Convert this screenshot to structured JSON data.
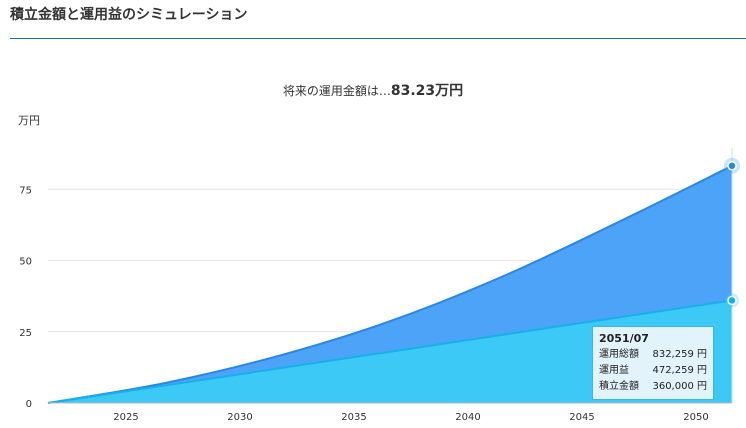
{
  "page": {
    "title": "積立金額と運用益のシミュレーション"
  },
  "headline": {
    "prefix": "将来の運用金額は…",
    "value": "83.23万円"
  },
  "chart_data": {
    "type": "area",
    "ylabel": "万円",
    "x_range": [
      2021.58,
      2051.58
    ],
    "ylim": [
      0,
      100
    ],
    "y_ticks": [
      0,
      25,
      50,
      75
    ],
    "x_ticks": [
      2025,
      2030,
      2035,
      2040,
      2045,
      2050
    ],
    "grid": true,
    "x": [
      2021.58,
      2026.58,
      2031.58,
      2036.58,
      2041.58,
      2046.58,
      2051.58
    ],
    "series": [
      {
        "name": "運用総額",
        "values": [
          0,
          6.8,
          16.3,
          28.7,
          44.6,
          63.4,
          83.23
        ],
        "color": "#4da3f8"
      },
      {
        "name": "積立金額",
        "values": [
          0,
          6,
          12,
          18,
          24,
          30,
          36
        ],
        "color": "#3cc9f5"
      }
    ],
    "colors": {
      "total": "#4da3f8",
      "total_line": "#2b86e3",
      "contribution": "#3cc9f5",
      "contribution_line": "#17b0e8"
    }
  },
  "tooltip": {
    "date": "2051/07",
    "rows": [
      {
        "label": "運用総額",
        "value": "832,259 円"
      },
      {
        "label": "運用益",
        "value": "472,259 円"
      },
      {
        "label": "積立金額",
        "value": "360,000 円"
      }
    ]
  }
}
